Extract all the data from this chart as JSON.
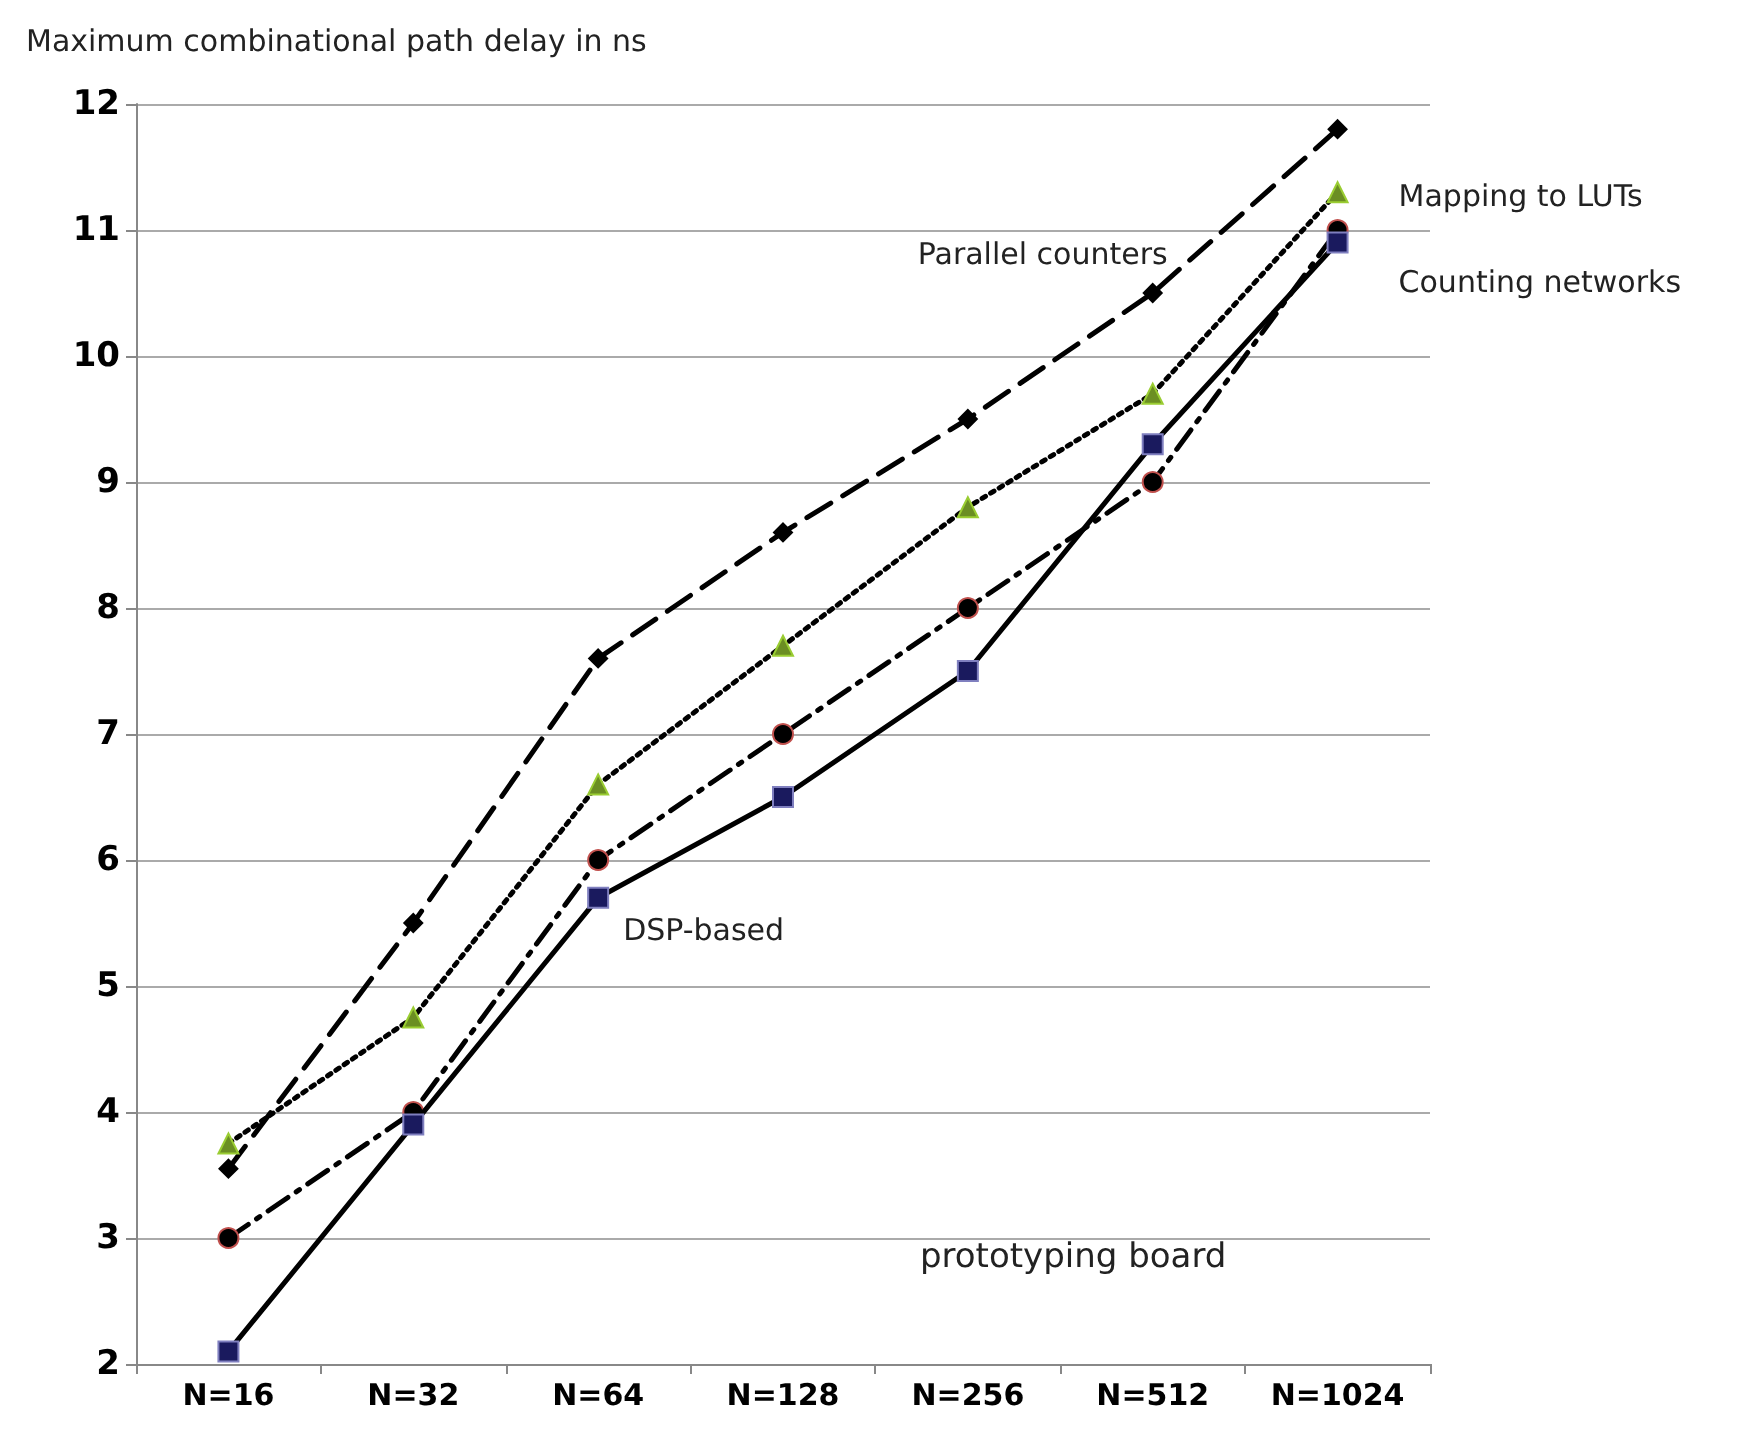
{
  "chart_data": {
    "type": "line",
    "title": "Maximum combinational path delay in ns",
    "categories": [
      "N=16",
      "N=32",
      "N=64",
      "N=128",
      "N=256",
      "N=512",
      "N=1024"
    ],
    "series": [
      {
        "name": "Parallel counters",
        "color": "#000000",
        "marker": "diamond",
        "line_style": "dashed",
        "values": [
          3.55,
          5.5,
          7.6,
          8.6,
          9.5,
          10.5,
          11.8
        ]
      },
      {
        "name": "Mapping to LUTs",
        "color": "#000000",
        "marker": "triangle",
        "line_style": "dotted",
        "values": [
          3.75,
          4.75,
          6.6,
          7.7,
          8.8,
          9.7,
          11.3
        ]
      },
      {
        "name": "Counting networks",
        "color": "#000000",
        "marker": "circle",
        "line_style": "dashdot",
        "values": [
          3.0,
          4.0,
          6.0,
          7.0,
          8.0,
          9.0,
          11.0
        ]
      },
      {
        "name": "DSP-based",
        "color": "#000000",
        "marker": "square",
        "line_style": "solid",
        "values": [
          2.1,
          3.9,
          5.7,
          6.5,
          7.5,
          9.3,
          10.9
        ]
      }
    ],
    "ylim": [
      2,
      12
    ],
    "yticks": [
      2,
      3,
      4,
      5,
      6,
      7,
      8,
      9,
      10,
      11,
      12
    ],
    "grid": "y",
    "legend": false,
    "annotations": [
      "prototyping board"
    ]
  }
}
